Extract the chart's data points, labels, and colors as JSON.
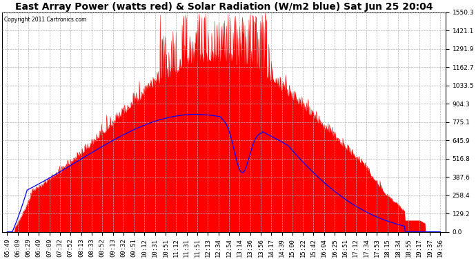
{
  "title": "East Array Power (watts red) & Solar Radiation (W/m2 blue) Sat Jun 25 20:04",
  "copyright": "Copyright 2011 Cartronics.com",
  "y_ticks": [
    0.0,
    129.2,
    258.4,
    387.6,
    516.8,
    645.9,
    775.1,
    904.3,
    1033.5,
    1162.7,
    1291.9,
    1421.1,
    1550.3
  ],
  "ylim": [
    0,
    1550.3
  ],
  "background_color": "#ffffff",
  "grid_color": "#b0b0b0",
  "fill_color": "#ff0000",
  "line_color": "#0000ff",
  "title_fontsize": 10,
  "tick_fontsize": 6.5,
  "x_labels": [
    "05:49",
    "06:09",
    "06:29",
    "06:49",
    "07:09",
    "07:32",
    "07:52",
    "08:13",
    "08:33",
    "08:52",
    "09:13",
    "09:32",
    "09:51",
    "10:12",
    "10:31",
    "10:51",
    "11:12",
    "11:31",
    "11:51",
    "12:13",
    "12:34",
    "12:54",
    "13:14",
    "13:36",
    "13:56",
    "14:17",
    "14:39",
    "15:00",
    "15:22",
    "15:42",
    "16:04",
    "16:25",
    "16:51",
    "17:12",
    "17:34",
    "17:53",
    "18:15",
    "18:34",
    "18:55",
    "19:17",
    "19:37",
    "19:56"
  ]
}
